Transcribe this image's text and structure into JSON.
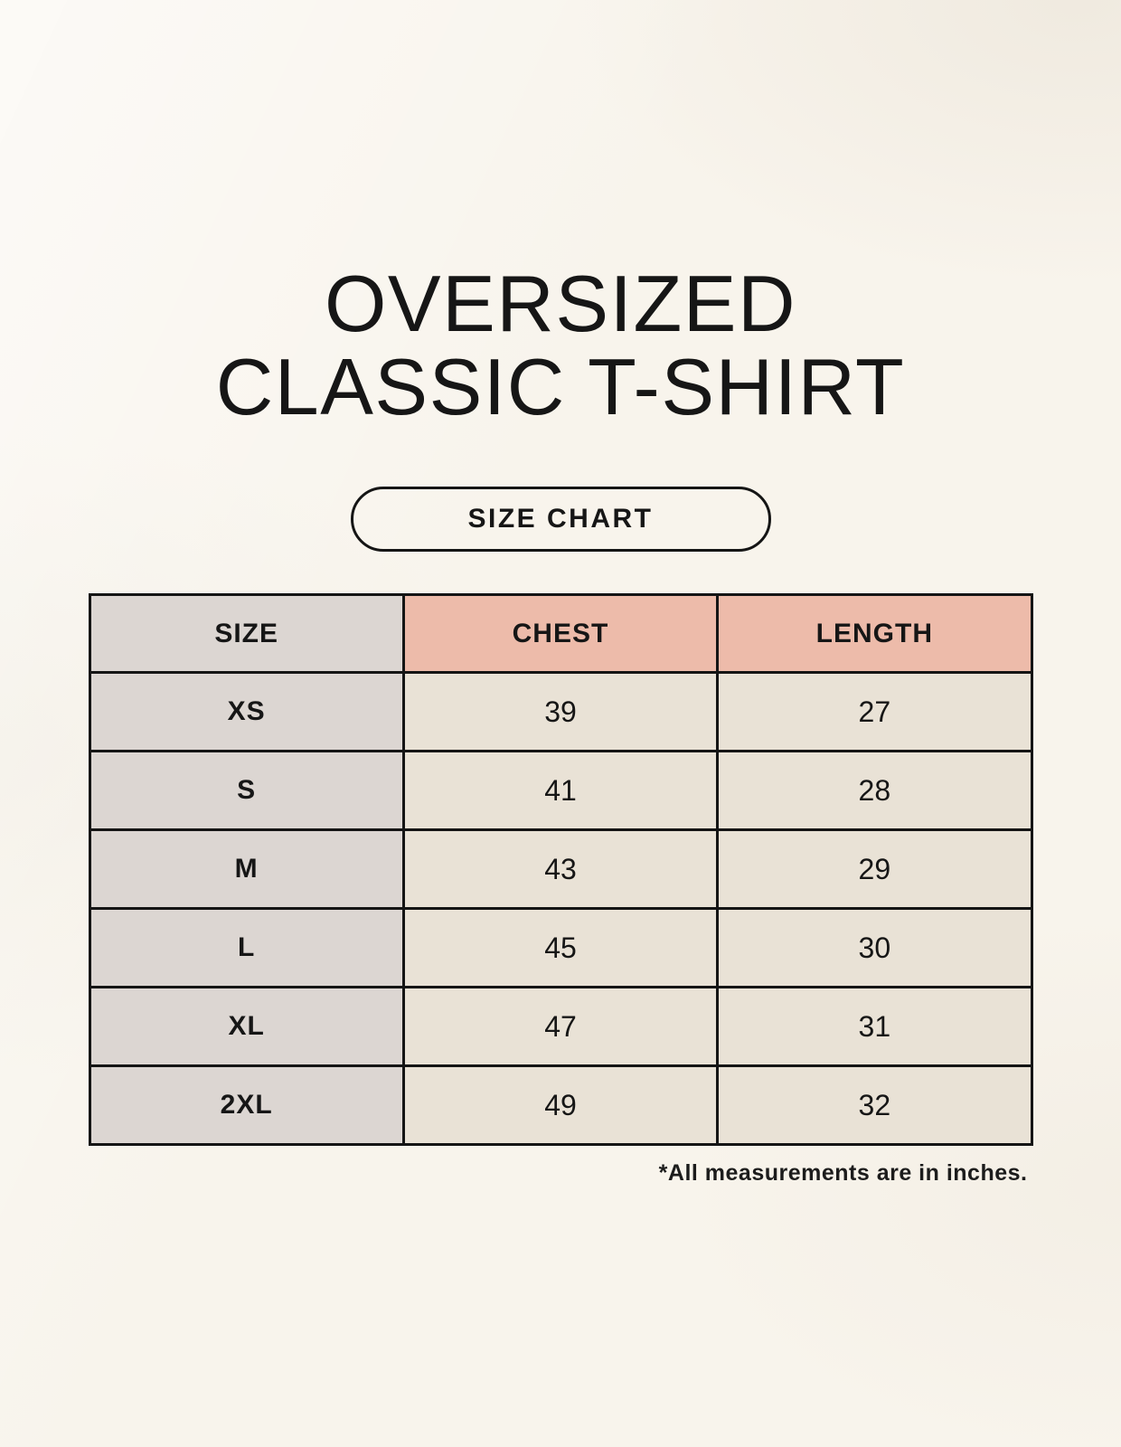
{
  "page": {
    "title_line1": "OVERSIZED",
    "title_line2": "CLASSIC T-SHIRT",
    "badge_label": "SIZE CHART",
    "footnote": "*All measurements are in inches."
  },
  "colors": {
    "page_background": "#f8f4ec",
    "size_column_bg": "#dcd6d2",
    "accent_header_bg": "#edbbaa",
    "data_cell_bg": "#e9e2d6",
    "border_color": "#151515",
    "text_color": "#161616"
  },
  "chart_data": {
    "type": "table",
    "title": "OVERSIZED CLASSIC T-SHIRT",
    "subtitle": "SIZE CHART",
    "columns": [
      "SIZE",
      "CHEST",
      "LENGTH"
    ],
    "rows": [
      [
        "XS",
        39,
        27
      ],
      [
        "S",
        41,
        28
      ],
      [
        "M",
        43,
        29
      ],
      [
        "L",
        45,
        30
      ],
      [
        "XL",
        47,
        31
      ],
      [
        "2XL",
        49,
        32
      ]
    ],
    "measurement_unit": "inches",
    "units_note": "*All measurements are in inches."
  }
}
